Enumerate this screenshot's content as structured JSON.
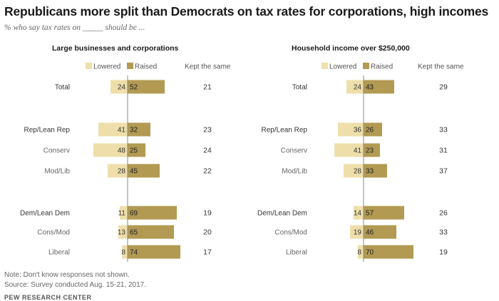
{
  "title": "Republicans more split than Democrats on tax rates for corporations, high incomes",
  "subtitle": "% who say tax rates on _____ should be ...",
  "legend": {
    "lowered": "Lowered",
    "raised": "Raised",
    "kept": "Kept the same"
  },
  "colors": {
    "lowered": "#eedfaa",
    "raised": "#b29a52",
    "axis": "#888888",
    "label": "#333333",
    "sublabel": "#666666"
  },
  "chart_data": [
    {
      "type": "bar",
      "title": "Large businesses and corporations",
      "categories": [
        "Total",
        "Rep/Lean Rep",
        "Conserv",
        "Mod/Lib",
        "Dem/Lean Dem",
        "Cons/Mod",
        "Liberal"
      ],
      "series": [
        {
          "name": "Lowered",
          "values": [
            24,
            41,
            48,
            28,
            11,
            13,
            8
          ]
        },
        {
          "name": "Raised",
          "values": [
            52,
            32,
            25,
            45,
            69,
            65,
            74
          ]
        },
        {
          "name": "Kept the same",
          "values": [
            21,
            23,
            24,
            22,
            19,
            20,
            17
          ]
        }
      ]
    },
    {
      "type": "bar",
      "title": "Household income over $250,000",
      "categories": [
        "Total",
        "Rep/Lean Rep",
        "Conserv",
        "Mod/Lib",
        "Dem/Lean Dem",
        "Cons/Mod",
        "Liberal"
      ],
      "series": [
        {
          "name": "Lowered",
          "values": [
            24,
            36,
            41,
            28,
            14,
            19,
            8
          ]
        },
        {
          "name": "Raised",
          "values": [
            43,
            26,
            23,
            33,
            57,
            46,
            70
          ]
        },
        {
          "name": "Kept the same",
          "values": [
            29,
            33,
            31,
            37,
            26,
            33,
            19
          ]
        }
      ]
    }
  ],
  "note": "Note: Don't know responses not shown.",
  "survey": "Source: Survey conducted Aug. 15-21, 2017.",
  "source": "PEW RESEARCH CENTER"
}
